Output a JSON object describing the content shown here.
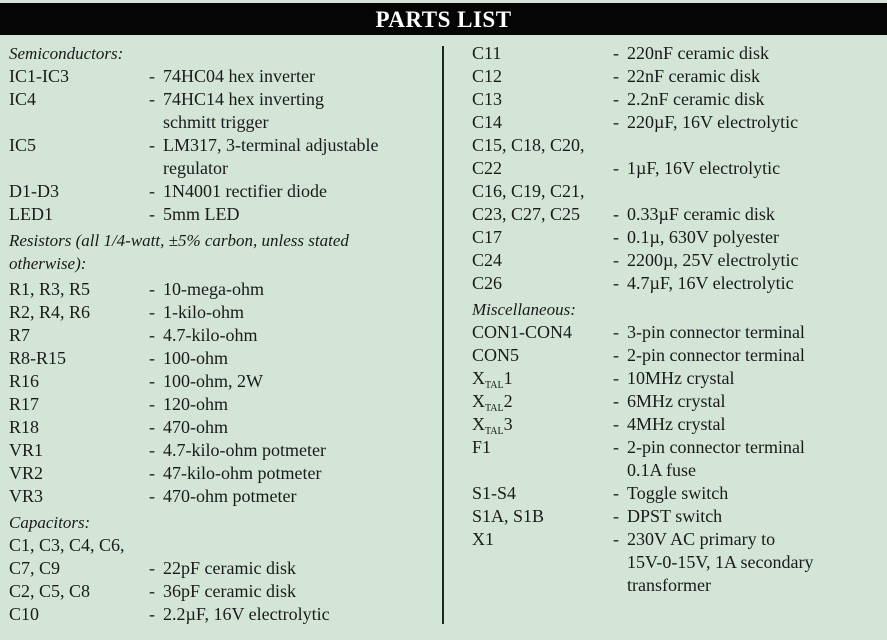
{
  "title": "PARTS LIST",
  "left_rows": [
    {
      "heading": "Semiconductors:"
    },
    {
      "ref": "IC1-IC3",
      "dash": "-",
      "desc": "74HC04 hex inverter"
    },
    {
      "ref": "IC4",
      "dash": "-",
      "desc": "74HC14 hex inverting"
    },
    {
      "desc": "schmitt trigger"
    },
    {
      "ref": "IC5",
      "dash": "-",
      "desc": "LM317, 3-terminal adjustable"
    },
    {
      "desc": "regulator"
    },
    {
      "ref": "D1-D3",
      "dash": "-",
      "desc": "1N4001 rectifier diode"
    },
    {
      "ref": "LED1",
      "dash": "-",
      "desc": "5mm LED"
    },
    {
      "heading": "Resistors (all 1/4-watt, ±5% carbon, unless stated",
      "gap": true
    },
    {
      "heading": "otherwise):"
    },
    {
      "ref": "R1, R3, R5",
      "dash": "-",
      "desc": "10-mega-ohm",
      "gap": true
    },
    {
      "ref": "R2, R4, R6",
      "dash": "-",
      "desc": "1-kilo-ohm"
    },
    {
      "ref": "R7",
      "dash": "-",
      "desc": "4.7-kilo-ohm"
    },
    {
      "ref": "R8-R15",
      "dash": "-",
      "desc": "100-ohm"
    },
    {
      "ref": "R16",
      "dash": "-",
      "desc": "100-ohm, 2W"
    },
    {
      "ref": "R17",
      "dash": "-",
      "desc": "120-ohm"
    },
    {
      "ref": "R18",
      "dash": "-",
      "desc": "470-ohm"
    },
    {
      "ref": "VR1",
      "dash": "-",
      "desc": "4.7-kilo-ohm potmeter"
    },
    {
      "ref": "VR2",
      "dash": "-",
      "desc": "47-kilo-ohm potmeter"
    },
    {
      "ref": "VR3",
      "dash": "-",
      "desc": "470-ohm potmeter"
    },
    {
      "heading": "Capacitors:",
      "gap": true
    },
    {
      "ref": "C1, C3, C4, C6,"
    },
    {
      "ref": "C7, C9",
      "dash": "-",
      "desc": "22pF ceramic disk"
    },
    {
      "ref": "C2, C5, C8",
      "dash": "-",
      "desc": "36pF ceramic disk"
    },
    {
      "ref": "C10",
      "dash": "-",
      "desc": "2.2µF, 16V electrolytic"
    }
  ],
  "right_rows": [
    {
      "ref": "C11",
      "dash": "-",
      "desc": "220nF ceramic disk"
    },
    {
      "ref": "C12",
      "dash": "-",
      "desc": "22nF ceramic disk"
    },
    {
      "ref": "C13",
      "dash": "-",
      "desc": "2.2nF ceramic disk"
    },
    {
      "ref": "C14",
      "dash": "-",
      "desc": "220µF, 16V electrolytic"
    },
    {
      "ref": "C15, C18, C20,"
    },
    {
      "ref": "C22",
      "dash": "-",
      "desc": "1µF, 16V electrolytic"
    },
    {
      "ref": "C16, C19, C21,"
    },
    {
      "ref": "C23, C27, C25",
      "dash": "-",
      "desc": "0.33µF ceramic disk"
    },
    {
      "ref": "C17",
      "dash": "-",
      "desc": "0.1µ, 630V polyester"
    },
    {
      "ref": "C24",
      "dash": "-",
      "desc": "2200µ, 25V electrolytic"
    },
    {
      "ref": "C26",
      "dash": "-",
      "desc": "4.7µF, 16V electrolytic"
    },
    {
      "heading": "Miscellaneous:",
      "gap": true
    },
    {
      "ref": "CON1-CON4",
      "dash": "-",
      "desc": "3-pin connector terminal"
    },
    {
      "ref": "CON5",
      "dash": "-",
      "desc": "2-pin connector terminal"
    },
    {
      "ref": "X",
      "ref_sub": "TAL",
      "ref_suffix": "1",
      "dash": "-",
      "desc": "10MHz crystal"
    },
    {
      "ref": "X",
      "ref_sub": "TAL",
      "ref_suffix": "2",
      "dash": "-",
      "desc": "6MHz crystal"
    },
    {
      "ref": "X",
      "ref_sub": "TAL",
      "ref_suffix": "3",
      "dash": "-",
      "desc": "4MHz crystal"
    },
    {
      "ref": "F1",
      "dash": "-",
      "desc": "2-pin connector terminal"
    },
    {
      "desc": "0.1A fuse"
    },
    {
      "ref": "S1-S4",
      "dash": "-",
      "desc": "Toggle switch"
    },
    {
      "ref": "S1A, S1B",
      "dash": "-",
      "desc": "DPST switch"
    },
    {
      "ref": "X1",
      "dash": "-",
      "desc": "230V AC primary to"
    },
    {
      "desc": "15V-0-15V, 1A secondary"
    },
    {
      "desc": "transformer"
    }
  ]
}
